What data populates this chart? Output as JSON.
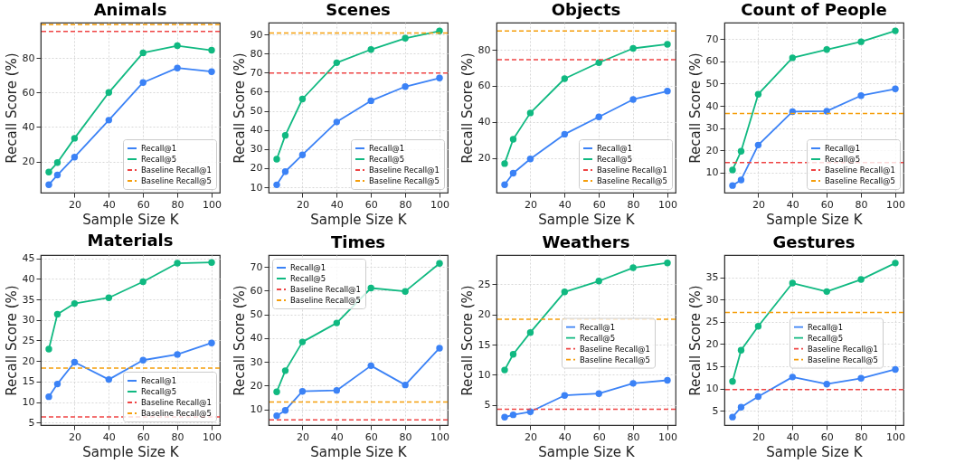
{
  "chart_data": [
    {
      "type": "line",
      "title": "Animals",
      "xlabel": "Sample Size K",
      "ylabel": "Recall Score (%)",
      "x": [
        5,
        10,
        20,
        40,
        60,
        80,
        100
      ],
      "xlim": [
        0.25,
        104.75
      ],
      "xticks": [
        20,
        40,
        60,
        80,
        100
      ],
      "ylim": [
        2,
        100.5
      ],
      "yticks": [
        20,
        40,
        60,
        80
      ],
      "grid": true,
      "legend": "bottom right",
      "marker": "circle",
      "series": [
        {
          "name": "Recall@1",
          "color": "#3b82f6",
          "values": [
            6.6,
            12.2,
            22.6,
            44,
            65.8,
            74.2,
            72.1
          ]
        },
        {
          "name": "Recall@5",
          "color": "#10b981",
          "values": [
            13.9,
            19.4,
            33.5,
            60,
            83,
            87.1,
            84.5
          ]
        }
      ],
      "ref_lines": [
        {
          "axis": "y",
          "value": 95.4,
          "label": "Baseline Recall@1",
          "color": "#ef4444",
          "line_style": "dashed"
        },
        {
          "axis": "y",
          "value": 99.3,
          "label": "Baseline Recall@5",
          "color": "#f59e0b",
          "line_style": "dashed"
        }
      ]
    },
    {
      "type": "line",
      "title": "Scenes",
      "xlabel": "Sample Size K",
      "ylabel": "Recall Score (%)",
      "x": [
        5,
        10,
        20,
        40,
        60,
        80,
        100
      ],
      "xlim": [
        0.25,
        104.75
      ],
      "xticks": [
        20,
        40,
        60,
        80,
        100
      ],
      "ylim": [
        7.2,
        96.2
      ],
      "yticks": [
        10,
        20,
        30,
        40,
        50,
        60,
        70,
        80,
        90
      ],
      "grid": true,
      "legend": "bottom right",
      "marker": "circle",
      "series": [
        {
          "name": "Recall@1",
          "color": "#3b82f6",
          "values": [
            11.3,
            18.2,
            27,
            44.2,
            55.3,
            62.7,
            67.2
          ]
        },
        {
          "name": "Recall@5",
          "color": "#10b981",
          "values": [
            24.7,
            37.2,
            56.2,
            75.2,
            82.1,
            88,
            91.8
          ]
        }
      ],
      "ref_lines": [
        {
          "axis": "y",
          "value": 69.8,
          "label": "Baseline Recall@1",
          "color": "#ef4444",
          "line_style": "dashed"
        },
        {
          "axis": "y",
          "value": 90.7,
          "label": "Baseline Recall@5",
          "color": "#f59e0b",
          "line_style": "dashed"
        }
      ]
    },
    {
      "type": "line",
      "title": "Objects",
      "xlabel": "Sample Size K",
      "ylabel": "Recall Score (%)",
      "x": [
        5,
        10,
        20,
        40,
        60,
        80,
        100
      ],
      "xlim": [
        0.25,
        104.75
      ],
      "xticks": [
        20,
        40,
        60,
        80,
        100
      ],
      "ylim": [
        0.8,
        95.1
      ],
      "yticks": [
        20,
        40,
        60,
        80
      ],
      "grid": true,
      "legend": "bottom right",
      "marker": "circle",
      "series": [
        {
          "name": "Recall@1",
          "color": "#3b82f6",
          "values": [
            5.2,
            11.6,
            19.5,
            33.2,
            42.8,
            52.5,
            57.1
          ]
        },
        {
          "name": "Recall@5",
          "color": "#10b981",
          "values": [
            16.9,
            30.4,
            45,
            64,
            72.9,
            80.8,
            83.1
          ]
        }
      ],
      "ref_lines": [
        {
          "axis": "y",
          "value": 74.5,
          "label": "Baseline Recall@1",
          "color": "#ef4444",
          "line_style": "dashed"
        },
        {
          "axis": "y",
          "value": 90.5,
          "label": "Baseline Recall@5",
          "color": "#f59e0b",
          "line_style": "dashed"
        }
      ]
    },
    {
      "type": "line",
      "title": "Count of People",
      "xlabel": "Sample Size K",
      "ylabel": "Recall Score (%)",
      "x": [
        5,
        10,
        20,
        40,
        60,
        80,
        100
      ],
      "xlim": [
        0.25,
        104.75
      ],
      "xticks": [
        20,
        40,
        60,
        80,
        100
      ],
      "ylim": [
        1,
        77.4
      ],
      "yticks": [
        10,
        20,
        30,
        40,
        50,
        60,
        70
      ],
      "grid": true,
      "legend": "bottom right",
      "marker": "circle",
      "series": [
        {
          "name": "Recall@1",
          "color": "#3b82f6",
          "values": [
            4.2,
            6.7,
            22.4,
            37.4,
            37.6,
            44.6,
            47.6
          ]
        },
        {
          "name": "Recall@5",
          "color": "#10b981",
          "values": [
            11.2,
            19.6,
            45.2,
            61.6,
            65.3,
            68.8,
            73.7
          ]
        }
      ],
      "ref_lines": [
        {
          "axis": "y",
          "value": 14.5,
          "label": "Baseline Recall@1",
          "color": "#ef4444",
          "line_style": "dashed"
        },
        {
          "axis": "y",
          "value": 36.6,
          "label": "Baseline Recall@5",
          "color": "#f59e0b",
          "line_style": "dashed"
        }
      ]
    },
    {
      "type": "line",
      "title": "Materials",
      "xlabel": "Sample Size K",
      "ylabel": "Recall Score (%)",
      "x": [
        5,
        10,
        20,
        40,
        60,
        80,
        100
      ],
      "xlim": [
        0.25,
        104.75
      ],
      "xticks": [
        20,
        40,
        60,
        80,
        100
      ],
      "ylim": [
        4.4,
        45.8
      ],
      "yticks": [
        5,
        10,
        15,
        20,
        25,
        30,
        35,
        40,
        45
      ],
      "grid": true,
      "legend": "bottom right",
      "marker": "circle",
      "series": [
        {
          "name": "Recall@1",
          "color": "#3b82f6",
          "values": [
            11.3,
            14.4,
            19.7,
            15.5,
            20.2,
            21.6,
            24.4
          ]
        },
        {
          "name": "Recall@5",
          "color": "#10b981",
          "values": [
            22.9,
            31.4,
            34,
            35.4,
            39.3,
            43.8,
            44
          ]
        }
      ],
      "ref_lines": [
        {
          "axis": "y",
          "value": 6.4,
          "label": "Baseline Recall@1",
          "color": "#ef4444",
          "line_style": "dashed"
        },
        {
          "axis": "y",
          "value": 18.3,
          "label": "Baseline Recall@5",
          "color": "#f59e0b",
          "line_style": "dashed"
        }
      ]
    },
    {
      "type": "line",
      "title": "Times",
      "xlabel": "Sample Size K",
      "ylabel": "Recall Score (%)",
      "x": [
        5,
        10,
        20,
        40,
        60,
        80,
        100
      ],
      "xlim": [
        0.25,
        104.75
      ],
      "xticks": [
        20,
        40,
        60,
        80,
        100
      ],
      "ylim": [
        3.4,
        75
      ],
      "yticks": [
        10,
        20,
        30,
        40,
        50,
        60,
        70
      ],
      "grid": true,
      "legend": "top left",
      "marker": "circle",
      "series": [
        {
          "name": "Recall@1",
          "color": "#3b82f6",
          "values": [
            7.3,
            9.6,
            17.6,
            18,
            28.4,
            20.3,
            35.8
          ]
        },
        {
          "name": "Recall@5",
          "color": "#10b981",
          "values": [
            17.4,
            26.3,
            38.4,
            46.4,
            61.1,
            59.7,
            71.5
          ]
        }
      ],
      "ref_lines": [
        {
          "axis": "y",
          "value": 5.6,
          "label": "Baseline Recall@1",
          "color": "#ef4444",
          "line_style": "dashed"
        },
        {
          "axis": "y",
          "value": 13.1,
          "label": "Baseline Recall@5",
          "color": "#f59e0b",
          "line_style": "dashed"
        }
      ]
    },
    {
      "type": "line",
      "title": "Weathers",
      "xlabel": "Sample Size K",
      "ylabel": "Recall Score (%)",
      "x": [
        5,
        10,
        20,
        40,
        60,
        80,
        100
      ],
      "xlim": [
        0.25,
        104.75
      ],
      "xticks": [
        20,
        40,
        60,
        80,
        100
      ],
      "ylim": [
        1.7,
        29.8
      ],
      "yticks": [
        5,
        10,
        15,
        20,
        25
      ],
      "grid": true,
      "legend": "right",
      "marker": "circle",
      "series": [
        {
          "name": "Recall@1",
          "color": "#3b82f6",
          "values": [
            3,
            3.4,
            3.9,
            6.6,
            6.9,
            8.6,
            9.1
          ]
        },
        {
          "name": "Recall@5",
          "color": "#10b981",
          "values": [
            10.8,
            13.4,
            17,
            23.7,
            25.5,
            27.7,
            28.5
          ]
        }
      ],
      "ref_lines": [
        {
          "axis": "y",
          "value": 4.3,
          "label": "Baseline Recall@1",
          "color": "#ef4444",
          "line_style": "dashed"
        },
        {
          "axis": "y",
          "value": 19.2,
          "label": "Baseline Recall@5",
          "color": "#f59e0b",
          "line_style": "dashed"
        }
      ]
    },
    {
      "type": "line",
      "title": "Gestures",
      "xlabel": "Sample Size K",
      "ylabel": "Recall Score (%)",
      "x": [
        5,
        10,
        20,
        40,
        60,
        80,
        100
      ],
      "xlim": [
        0.25,
        104.75
      ],
      "xticks": [
        20,
        40,
        60,
        80,
        100
      ],
      "ylim": [
        1.8,
        40
      ],
      "yticks": [
        5,
        10,
        15,
        20,
        25,
        30,
        35
      ],
      "grid": true,
      "legend": "right",
      "marker": "circle",
      "series": [
        {
          "name": "Recall@1",
          "color": "#3b82f6",
          "values": [
            3.6,
            5.8,
            8.2,
            12.6,
            11,
            12.3,
            14.3
          ]
        },
        {
          "name": "Recall@5",
          "color": "#10b981",
          "values": [
            11.6,
            18.6,
            24,
            33.7,
            31.8,
            34.5,
            38.2
          ]
        }
      ],
      "ref_lines": [
        {
          "axis": "y",
          "value": 9.8,
          "label": "Baseline Recall@1",
          "color": "#ef4444",
          "line_style": "dashed"
        },
        {
          "axis": "y",
          "value": 27.1,
          "label": "Baseline Recall@5",
          "color": "#f59e0b",
          "line_style": "dashed"
        }
      ]
    }
  ]
}
